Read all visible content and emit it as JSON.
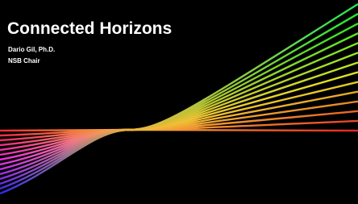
{
  "slide": {
    "title": "Connected Horizons",
    "presenter": "Dario Gil, Ph.D.",
    "role": "NSB Chair"
  }
}
